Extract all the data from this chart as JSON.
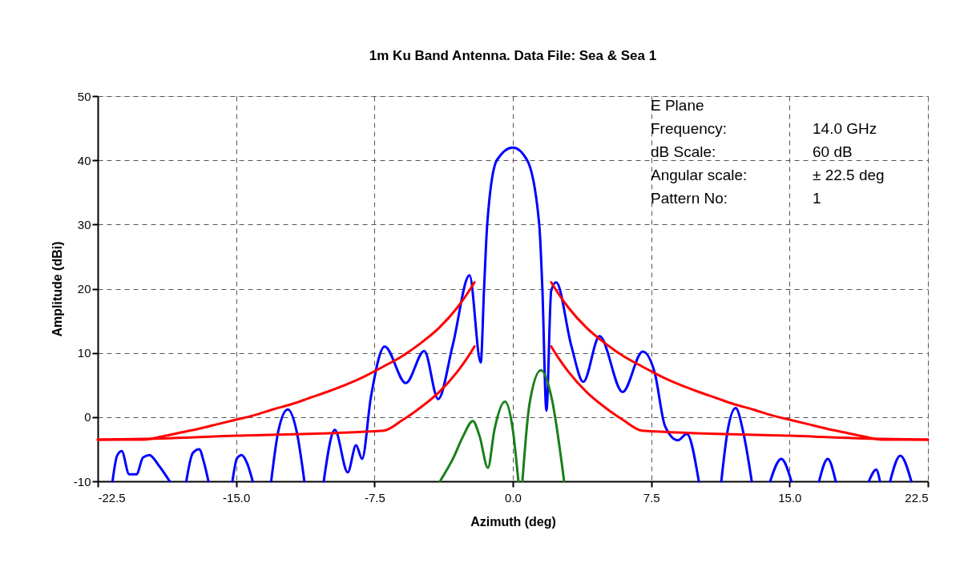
{
  "chart_data": {
    "type": "line",
    "title": "1m Ku Band Antenna.   Data File: Sea & Sea 1",
    "xlabel": "Azimuth (deg)",
    "ylabel": "Amplitude (dBi)",
    "xlim": [
      -22.5,
      22.5
    ],
    "xticks": [
      {
        "value": -22.5,
        "label": "-22.5"
      },
      {
        "value": -15,
        "label": "-15.0"
      },
      {
        "value": -7.5,
        "label": "-7.5"
      },
      {
        "value": 0,
        "label": "0.0"
      },
      {
        "value": 7.5,
        "label": "7.5"
      },
      {
        "value": 15,
        "label": "15.0"
      },
      {
        "value": 22.5,
        "label": "22.5"
      }
    ],
    "ylim": [
      -10,
      50
    ],
    "yticks": [
      -10,
      0,
      10,
      20,
      30,
      40,
      50
    ],
    "grid": true,
    "legend": false,
    "line_style": "solid",
    "marker": "none",
    "annotations": [
      "E Plane",
      "Frequency:",
      "14.0 GHz",
      "dB Scale:",
      "60 dB",
      "Angular scale:",
      "± 22.5 deg",
      "Pattern No:",
      "1"
    ],
    "series": [
      {
        "color": "#0000ff",
        "x": [
          -21.7,
          -21.45,
          -21.2,
          -20.8,
          -20.4,
          -20.05,
          -19.7,
          -19.2,
          -18.6,
          -18.15,
          -17.7,
          -17.35,
          -17.0,
          -16.75,
          -16.5,
          -15.85,
          -15.2,
          -14.95,
          -14.7,
          -14.4,
          -14.1,
          -13.6,
          -13.1,
          -12.7,
          -12.2,
          -11.7,
          -11.3,
          -10.8,
          -10.25,
          -9.65,
          -8.95,
          -8.5,
          -8.17,
          -7.7,
          -6.95,
          -5.8,
          -4.8,
          -4.05,
          -3.25,
          -2.35,
          -1.74,
          -1.56,
          -1.39,
          -0.87,
          0,
          0.78,
          1.43,
          1.6,
          1.82,
          2.08,
          2.35,
          3.17,
          3.82,
          4.7,
          5.95,
          7.04,
          7.69,
          8.25,
          8.95,
          9.43,
          10.08,
          10.7,
          11.3,
          11.65,
          12.08,
          12.5,
          12.95,
          13.45,
          13.95,
          14.55,
          15.1,
          15.85,
          16.6,
          17.07,
          17.5,
          18.4,
          19.3,
          19.7,
          19.9,
          20.2,
          20.45,
          21.0,
          21.6
        ],
        "values": [
          -10,
          -6.0,
          -5.3,
          -8.9,
          -8.9,
          -6.3,
          -5.9,
          -7.5,
          -10,
          null,
          -10,
          -5.6,
          -5.0,
          -7.0,
          -10,
          null,
          -10,
          -6.4,
          -5.9,
          -7.2,
          -10,
          null,
          -10,
          -2.0,
          1.2,
          -2.5,
          -10,
          null,
          -10,
          -2.0,
          -8.6,
          -4.4,
          -6.5,
          3.0,
          11.0,
          5.3,
          10.3,
          2.8,
          11.3,
          22.1,
          8.5,
          20,
          30.0,
          40,
          42.0,
          40,
          30,
          20,
          1.0,
          19.7,
          21.0,
          11.1,
          5.5,
          12.6,
          3.9,
          10.2,
          6.9,
          -1.4,
          -3.6,
          -2.6,
          -10,
          null,
          -10,
          -2.0,
          1.4,
          -2.5,
          -10,
          null,
          -10,
          -6.5,
          -10,
          null,
          -10,
          -6.5,
          -10,
          null,
          -10,
          -8.2,
          -10,
          null,
          -10,
          -6.0,
          -10
        ]
      },
      {
        "color": "#1a7f1a",
        "x": [
          -3.95,
          -3.25,
          -2.7,
          -2.17,
          -1.8,
          -1.35,
          -1.0,
          -0.43,
          0.0,
          0.3,
          0.41,
          0.52,
          0.9,
          1.52,
          2.1,
          2.78
        ],
        "values": [
          -10,
          -6.5,
          -3,
          -0.6,
          -3,
          -7.9,
          -2,
          2.4,
          -2,
          -10,
          null,
          -10,
          2,
          7.3,
          3,
          -10
        ]
      },
      {
        "color": "#ff0000",
        "x": [
          -22.5,
          -20,
          -19,
          -18,
          -17,
          -16,
          -15,
          -14,
          -13,
          -12,
          -11,
          -10,
          -9,
          -8,
          -7,
          -6,
          -5,
          -4,
          -3,
          -2.5,
          -2.08,
          0,
          2.08,
          2.5,
          3,
          4,
          5,
          6,
          7,
          8,
          9,
          10,
          11,
          12,
          13,
          14,
          15,
          16,
          17,
          18,
          19,
          20,
          22.5
        ],
        "values": [
          -3.5,
          -3.5,
          -3.0,
          -2.4,
          -1.8,
          -1.1,
          -0.4,
          0.3,
          1.2,
          2.0,
          3.0,
          4.0,
          5.1,
          6.4,
          7.9,
          9.5,
          11.5,
          13.9,
          17.1,
          19.1,
          21.0,
          null,
          21.0,
          19.1,
          17.1,
          13.9,
          11.5,
          9.5,
          7.9,
          6.4,
          5.1,
          4.0,
          3.0,
          2.0,
          1.2,
          0.3,
          -0.4,
          -1.1,
          -1.8,
          -2.4,
          -3.0,
          -3.5,
          -3.5
        ]
      },
      {
        "color": "#ff0000",
        "x": [
          -22.5,
          -20,
          -15,
          -7,
          -6,
          -5,
          -4,
          -3,
          -2.5,
          -2.08,
          0,
          2.08,
          2.5,
          3,
          4,
          5,
          6,
          7,
          15,
          20,
          22.5
        ],
        "values": [
          -3.5,
          -3.4,
          -2.9,
          -2.1,
          -0.5,
          1.5,
          3.9,
          7.1,
          9.1,
          11.0,
          null,
          11.0,
          9.1,
          7.1,
          3.9,
          1.5,
          -0.5,
          -2.1,
          -2.9,
          -3.4,
          -3.5
        ]
      }
    ]
  }
}
